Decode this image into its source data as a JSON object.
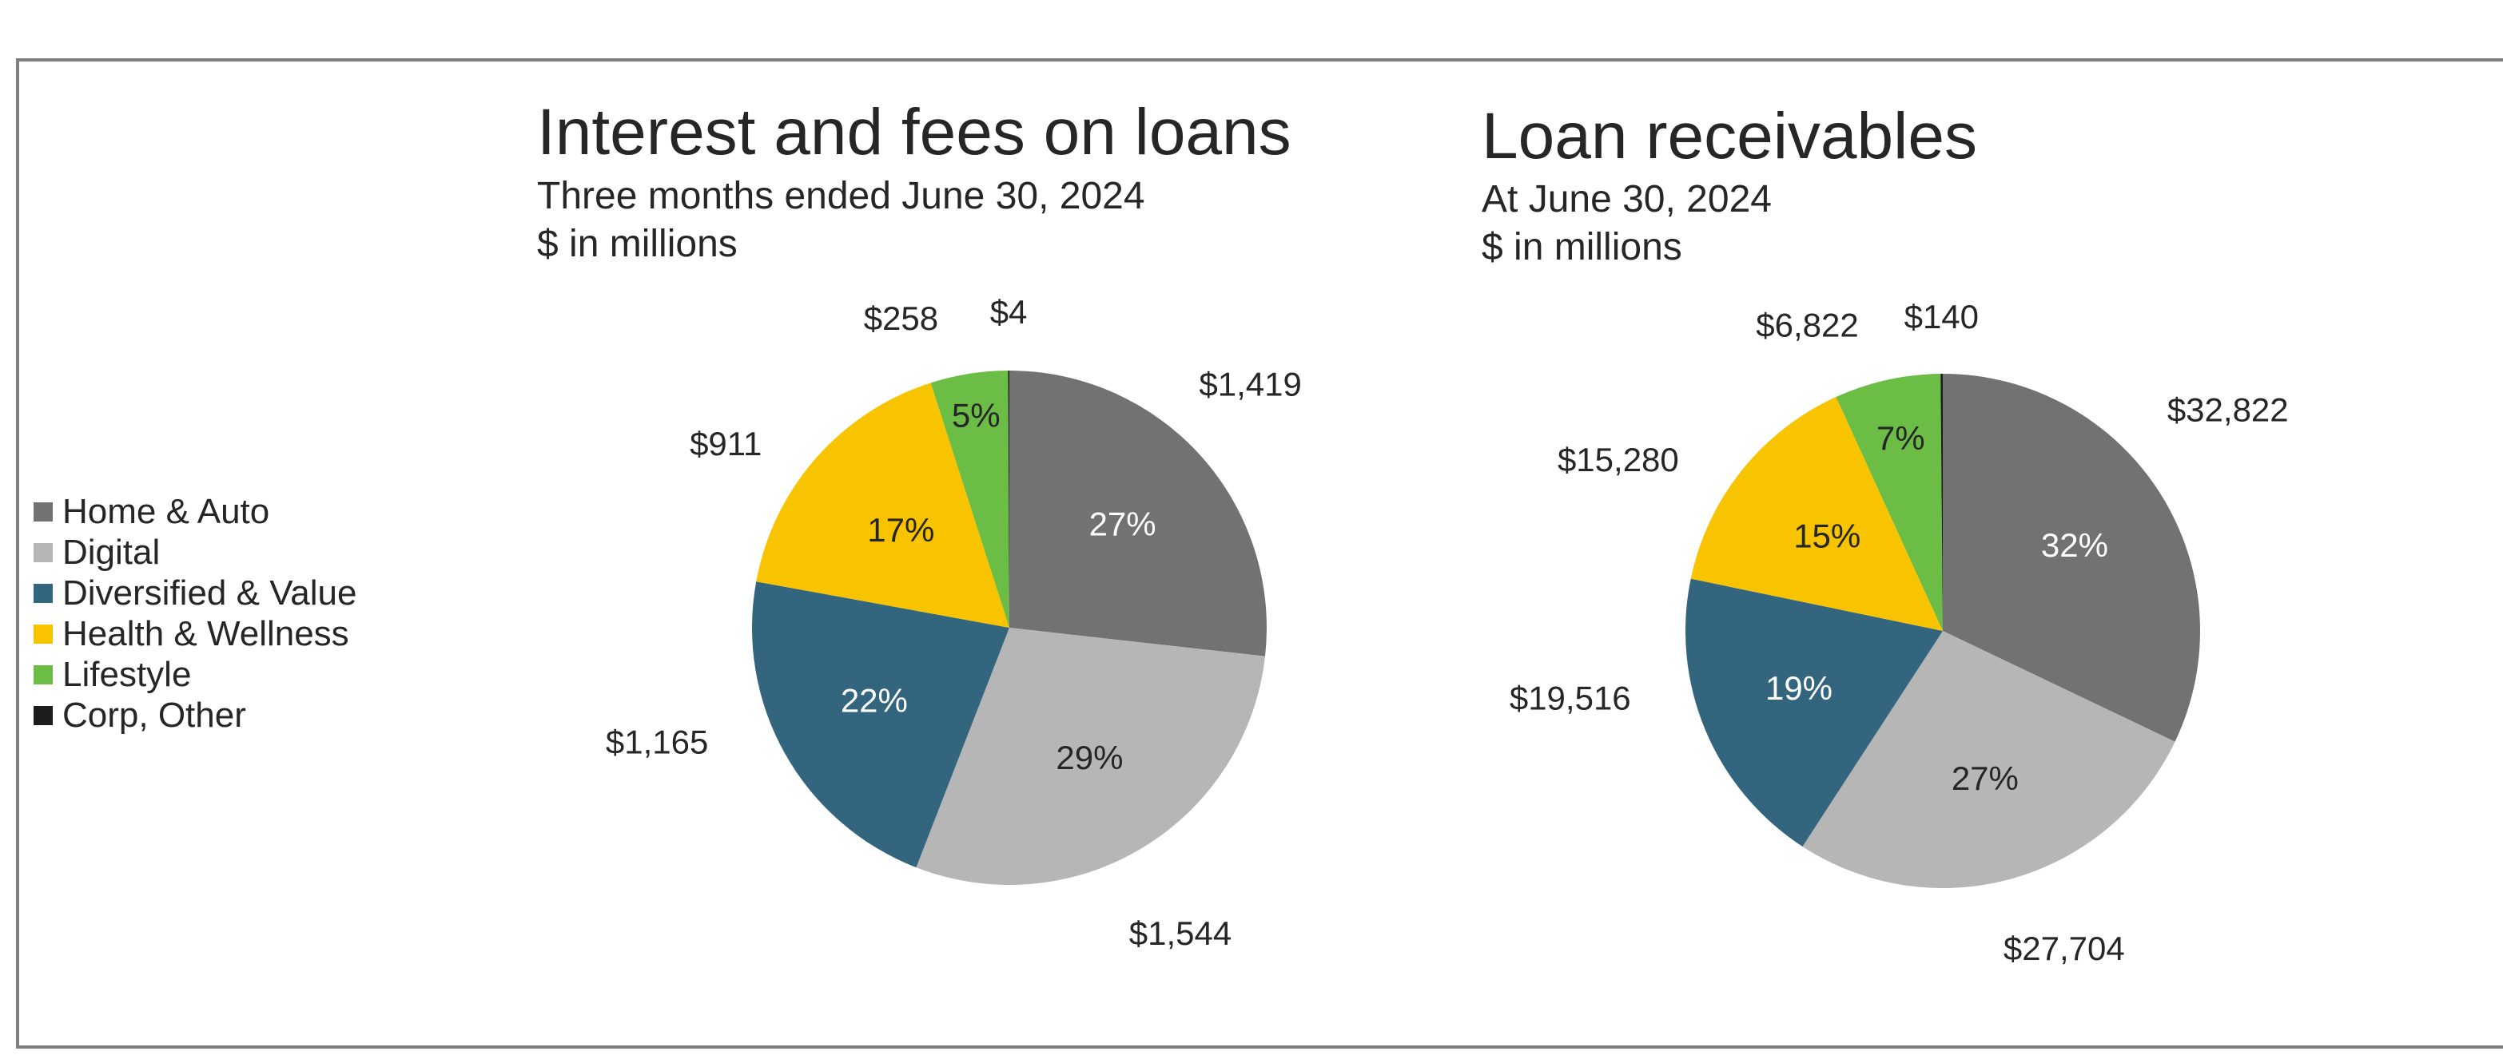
{
  "legend": {
    "items": [
      {
        "label": "Home & Auto",
        "color": "#727272"
      },
      {
        "label": "Digital",
        "color": "#b6b6b6"
      },
      {
        "label": "Diversified & Value",
        "color": "#33657f"
      },
      {
        "label": "Health & Wellness",
        "color": "#f8c400"
      },
      {
        "label": "Lifestyle",
        "color": "#6cbd45"
      },
      {
        "label": "Corp, Other",
        "color": "#1c1c1c"
      }
    ]
  },
  "left_chart": {
    "title": "Interest and fees on loans",
    "subtitle1": "Three months ended June 30, 2024",
    "subtitle2": "$ in millions"
  },
  "right_chart": {
    "title": "Loan receivables",
    "subtitle1": "At June 30, 2024",
    "subtitle2": "$ in millions"
  },
  "chart_data": [
    {
      "type": "pie",
      "title": "Interest and fees on loans",
      "subtitle": "Three months ended June 30, 2024; $ in millions",
      "categories": [
        "Home & Auto",
        "Digital",
        "Diversified & Value",
        "Health & Wellness",
        "Lifestyle",
        "Corp, Other"
      ],
      "values": [
        1419,
        1544,
        1165,
        911,
        258,
        4
      ],
      "value_labels": [
        "$1,419",
        "$1,544",
        "$1,165",
        "$911",
        "$258",
        "$4"
      ],
      "percent_labels": [
        "27%",
        "29%",
        "22%",
        "17%",
        "5%",
        ""
      ],
      "colors": [
        "#727272",
        "#b6b6b6",
        "#33657f",
        "#f8c400",
        "#6cbd45",
        "#1c1c1c"
      ],
      "legend_position": "left"
    },
    {
      "type": "pie",
      "title": "Loan receivables",
      "subtitle": "At June 30, 2024; $ in millions",
      "categories": [
        "Home & Auto",
        "Digital",
        "Diversified & Value",
        "Health & Wellness",
        "Lifestyle",
        "Corp, Other"
      ],
      "values": [
        32822,
        27704,
        19516,
        15280,
        6822,
        140
      ],
      "value_labels": [
        "$32,822",
        "$27,704",
        "$19,516",
        "$15,280",
        "$6,822",
        "$140"
      ],
      "percent_labels": [
        "32%",
        "27%",
        "19%",
        "15%",
        "7%",
        ""
      ],
      "colors": [
        "#727272",
        "#b6b6b6",
        "#33657f",
        "#f8c400",
        "#6cbd45",
        "#1c1c1c"
      ],
      "legend_position": "left"
    }
  ]
}
